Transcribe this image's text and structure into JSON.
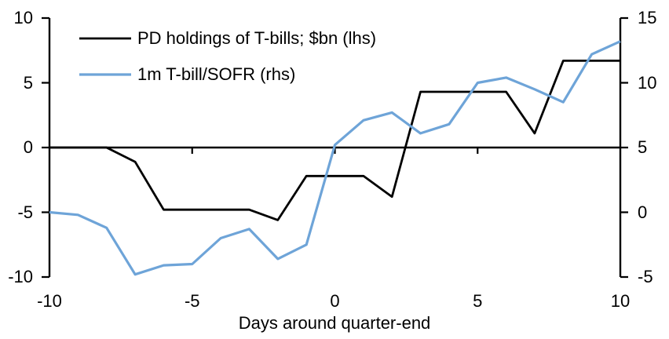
{
  "chart_data": {
    "type": "line",
    "title": "",
    "xlabel": "Days around quarter-end",
    "x": [
      -10,
      -9,
      -8,
      -7,
      -6,
      -5,
      -4,
      -3,
      -2,
      -1,
      0,
      1,
      2,
      3,
      4,
      5,
      6,
      7,
      8,
      9,
      10
    ],
    "series": [
      {
        "name": "PD holdings of T-bills; $bn (lhs)",
        "axis": "left",
        "color": "#000000",
        "stroke_width": 2.8,
        "values": [
          0,
          0,
          0,
          -1.1,
          -4.8,
          -4.8,
          -4.8,
          -4.8,
          -5.6,
          -2.2,
          -2.2,
          -2.2,
          -3.8,
          4.3,
          4.3,
          4.3,
          4.3,
          1.1,
          6.7,
          6.7,
          6.7
        ]
      },
      {
        "name": "1m T-bill/SOFR (rhs)",
        "axis": "right",
        "color": "#6EA4D8",
        "stroke_width": 3.2,
        "values": [
          0.0,
          -0.2,
          -1.2,
          -4.8,
          -4.1,
          -4.0,
          -2.0,
          -1.3,
          -3.6,
          -2.5,
          5.2,
          7.1,
          7.7,
          6.1,
          6.8,
          10.0,
          10.4,
          9.5,
          8.5,
          12.2,
          13.2
        ]
      }
    ],
    "left_axis": {
      "range": [
        -10,
        10
      ],
      "ticks": [
        "10",
        "5",
        "0",
        "-5",
        "-10"
      ]
    },
    "right_axis": {
      "range": [
        -5,
        15
      ],
      "ticks": [
        "15",
        "10",
        "5",
        "0",
        "-5"
      ]
    },
    "x_axis": {
      "range": [
        -10,
        10
      ],
      "ticks": [
        "-10",
        "-5",
        "0",
        "5",
        "10"
      ],
      "tick_values": [
        -10,
        -5,
        0,
        5,
        10
      ]
    },
    "legend_position": "top-left",
    "grid": "off",
    "axis_color": "#000000"
  }
}
